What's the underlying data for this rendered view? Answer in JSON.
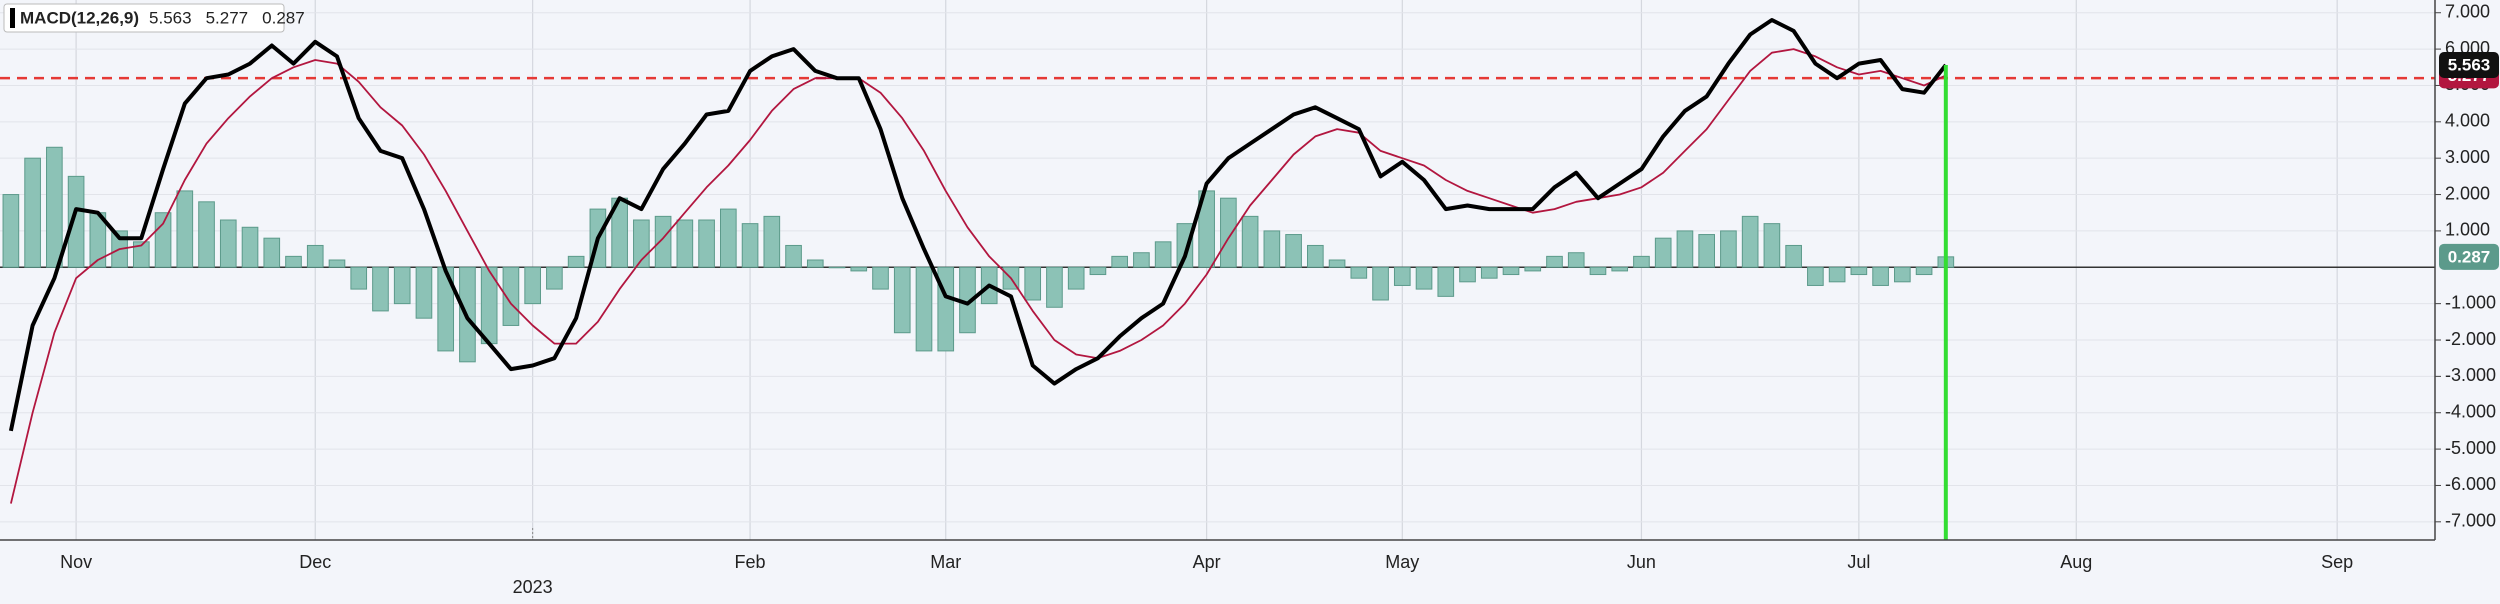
{
  "chart_data": {
    "type": "macd",
    "title": "MACD(12,26,9)",
    "categories": [
      null,
      null,
      null,
      "Nov",
      null,
      null,
      null,
      null,
      null,
      null,
      null,
      null,
      null,
      null,
      "Dec",
      null,
      null,
      null,
      null,
      null,
      null,
      null,
      null,
      null,
      "2023",
      null,
      null,
      null,
      null,
      null,
      null,
      null,
      null,
      null,
      "Feb",
      null,
      null,
      null,
      null,
      null,
      null,
      null,
      null,
      "Mar",
      null,
      null,
      null,
      null,
      null,
      null,
      null,
      null,
      null,
      null,
      null,
      "Apr",
      null,
      null,
      null,
      null,
      null,
      null,
      null,
      null,
      "May",
      null,
      null,
      null,
      null,
      null,
      null,
      null,
      null,
      null,
      null,
      "Jun",
      null,
      null,
      null,
      null,
      null,
      null,
      null,
      null,
      null,
      "Jul",
      null,
      null,
      null,
      null,
      null,
      null,
      null,
      null,
      null,
      "Aug",
      null,
      null,
      null,
      null,
      null,
      null,
      null,
      null,
      null,
      null,
      null,
      "Sep",
      null,
      null,
      null,
      null
    ],
    "series": [
      {
        "kind": "histogram",
        "color": "#8cc2b6",
        "values": [
          2.0,
          3.0,
          3.3,
          2.5,
          1.5,
          1.0,
          0.7,
          1.5,
          2.1,
          1.8,
          1.3,
          1.1,
          0.8,
          0.3,
          0.6,
          0.2,
          -0.6,
          -1.2,
          -1.0,
          -1.4,
          -2.3,
          -2.6,
          -2.1,
          -1.6,
          -1.0,
          -0.6,
          0.3,
          1.6,
          1.9,
          1.3,
          1.4,
          1.3,
          1.3,
          1.6,
          1.2,
          1.4,
          0.6,
          0.2,
          0.0,
          -0.1,
          -0.6,
          -1.8,
          -2.3,
          -2.3,
          -1.8,
          -1.0,
          -0.6,
          -0.9,
          -1.1,
          -0.6,
          -0.2,
          0.3,
          0.4,
          0.7,
          1.2,
          2.1,
          1.9,
          1.4,
          1.0,
          0.9,
          0.6,
          0.2,
          -0.3,
          -0.9,
          -0.5,
          -0.6,
          -0.8,
          -0.4,
          -0.3,
          -0.2,
          -0.1,
          0.3,
          0.4,
          -0.2,
          -0.1,
          0.3,
          0.8,
          1.0,
          0.9,
          1.0,
          1.4,
          1.2,
          0.6,
          -0.5,
          -0.4,
          -0.2,
          -0.5,
          -0.4,
          -0.2,
          0.287,
          null,
          null,
          null,
          null,
          null,
          null,
          null,
          null,
          null,
          null,
          null,
          null,
          null,
          null,
          null,
          null,
          null,
          null,
          null,
          null,
          null,
          null
        ]
      },
      {
        "kind": "line",
        "color": "#000000",
        "values": [
          -4.5,
          -1.6,
          -0.3,
          1.6,
          1.5,
          0.8,
          0.8,
          2.7,
          4.5,
          5.2,
          5.3,
          5.6,
          6.1,
          5.6,
          6.2,
          5.8,
          4.1,
          3.2,
          3.0,
          1.6,
          -0.1,
          -1.4,
          -2.1,
          -2.8,
          -2.7,
          -2.5,
          -1.4,
          0.8,
          1.9,
          1.6,
          2.7,
          3.4,
          4.2,
          4.3,
          5.4,
          5.8,
          6.0,
          5.4,
          5.2,
          5.2,
          3.8,
          1.9,
          0.5,
          -0.8,
          -1.0,
          -0.5,
          -0.8,
          -2.7,
          -3.2,
          -2.8,
          -2.5,
          -1.9,
          -1.4,
          -1.0,
          0.3,
          2.3,
          3.0,
          3.4,
          3.8,
          4.2,
          4.4,
          4.1,
          3.8,
          2.5,
          2.9,
          2.4,
          1.6,
          1.7,
          1.6,
          1.6,
          1.6,
          2.2,
          2.6,
          1.9,
          2.3,
          2.7,
          3.6,
          4.3,
          4.7,
          5.6,
          6.4,
          6.8,
          6.5,
          5.6,
          5.2,
          5.6,
          5.7,
          4.9,
          4.8,
          5.563,
          null,
          null,
          null,
          null,
          null,
          null,
          null,
          null,
          null,
          null,
          null,
          null,
          null,
          null,
          null,
          null,
          null,
          null,
          null,
          null,
          null,
          null
        ]
      },
      {
        "kind": "line",
        "color": "#b2163f",
        "values": [
          -6.5,
          -4.0,
          -1.8,
          -0.3,
          0.2,
          0.5,
          0.6,
          1.2,
          2.4,
          3.4,
          4.1,
          4.7,
          5.2,
          5.5,
          5.7,
          5.6,
          5.1,
          4.4,
          3.9,
          3.1,
          2.1,
          1.0,
          -0.1,
          -1.0,
          -1.6,
          -2.1,
          -2.1,
          -1.5,
          -0.6,
          0.2,
          0.8,
          1.5,
          2.2,
          2.8,
          3.5,
          4.3,
          4.9,
          5.2,
          5.2,
          5.2,
          4.8,
          4.1,
          3.2,
          2.1,
          1.1,
          0.3,
          -0.3,
          -1.2,
          -2.0,
          -2.4,
          -2.5,
          -2.3,
          -2.0,
          -1.6,
          -1.0,
          -0.2,
          0.8,
          1.7,
          2.4,
          3.1,
          3.6,
          3.8,
          3.7,
          3.2,
          3.0,
          2.8,
          2.4,
          2.1,
          1.9,
          1.7,
          1.5,
          1.6,
          1.8,
          1.9,
          2.0,
          2.2,
          2.6,
          3.2,
          3.8,
          4.6,
          5.4,
          5.9,
          6.0,
          5.8,
          5.5,
          5.3,
          5.4,
          5.2,
          5.0,
          5.277,
          null,
          null,
          null,
          null,
          null,
          null,
          null,
          null,
          null,
          null,
          null,
          null,
          null,
          null,
          null,
          null,
          null,
          null,
          null,
          null,
          null,
          null
        ]
      }
    ],
    "hline": {
      "value": 5.2,
      "color": "#e53935"
    },
    "ylim": [
      -7.5,
      7.35
    ],
    "yticks": [
      {
        "value": 7,
        "label": "7.000"
      },
      {
        "value": 6,
        "label": "6.000"
      },
      {
        "value": 5,
        "label": "5.000"
      },
      {
        "value": 4,
        "label": "4.000"
      },
      {
        "value": 3,
        "label": "3.000"
      },
      {
        "value": 2,
        "label": "2.000"
      },
      {
        "value": 1,
        "label": "1.000"
      },
      {
        "value": -1,
        "label": "-1.000"
      },
      {
        "value": -2,
        "label": "-2.000"
      },
      {
        "value": -3,
        "label": "-3.000"
      },
      {
        "value": -4,
        "label": "-4.000"
      },
      {
        "value": -5,
        "label": "-5.000"
      },
      {
        "value": -6,
        "label": "-6.000"
      },
      {
        "value": -7,
        "label": "-7.000"
      }
    ],
    "grid": true
  }
}
